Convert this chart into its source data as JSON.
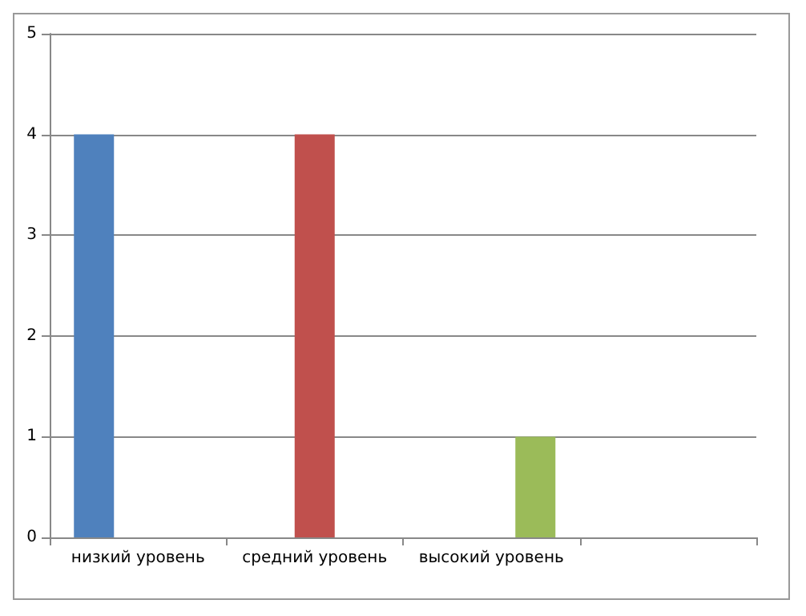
{
  "chart_data": {
    "type": "bar",
    "categories": [
      "низкий уровень",
      "средний уровень",
      "высокий уровень",
      null
    ],
    "series": [
      {
        "color": "#4f81bd",
        "values": [
          4,
          null,
          null,
          null
        ]
      },
      {
        "color": "#c0504d",
        "values": [
          null,
          4,
          null,
          null
        ]
      },
      {
        "color": "#9bbb59",
        "values": [
          null,
          null,
          1,
          null
        ]
      }
    ],
    "ylim": [
      0,
      5
    ],
    "yticks": [
      0,
      1,
      2,
      3,
      4,
      5
    ],
    "grid": "y"
  }
}
